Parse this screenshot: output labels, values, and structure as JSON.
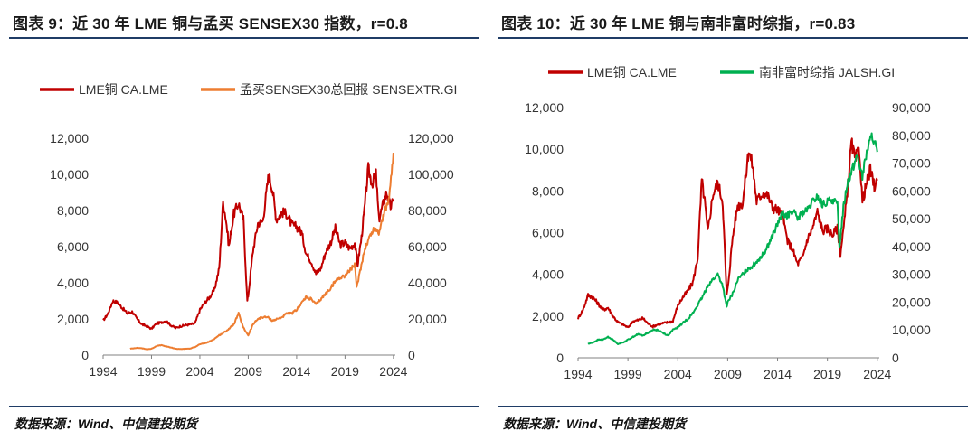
{
  "panels": [
    {
      "title": "图表 9：近 30 年 LME 铜与孟买 SENSEX30 指数，r=0.8",
      "source": "数据来源：Wind、中信建投期货"
    },
    {
      "title": "图表 10：近 30 年 LME 铜与南非富时综指，r=0.83",
      "source": "数据来源：Wind、中信建投期货"
    }
  ],
  "chart_data": [
    {
      "type": "line",
      "title": "图表 9：近 30 年 LME 铜与孟买 SENSEX30 指数，r=0.8",
      "x_ticks": [
        "1994",
        "1999",
        "2004",
        "2009",
        "2014",
        "2019",
        "2024"
      ],
      "xlim": [
        1994,
        2024.2
      ],
      "y_left": {
        "lim": [
          0,
          12000
        ],
        "ticks": [
          "0",
          "2,000",
          "4,000",
          "6,000",
          "8,000",
          "10,000",
          "12,000"
        ]
      },
      "y_right": {
        "lim": [
          0,
          120000
        ],
        "ticks": [
          "0",
          "20,000",
          "40,000",
          "60,000",
          "80,000",
          "100,000",
          "120,000"
        ]
      },
      "legend_position": "top",
      "series": [
        {
          "name": "LME铜 CA.LME",
          "color": "#c00000",
          "axis": "left",
          "x": [
            1994.0,
            1994.5,
            1995.0,
            1995.5,
            1996.0,
            1996.5,
            1997.0,
            1997.5,
            1998.0,
            1998.5,
            1999.0,
            1999.5,
            2000.0,
            2000.5,
            2001.0,
            2001.5,
            2002.0,
            2002.5,
            2003.0,
            2003.5,
            2004.0,
            2004.5,
            2005.0,
            2005.5,
            2006.0,
            2006.4,
            2006.7,
            2007.0,
            2007.5,
            2008.0,
            2008.5,
            2008.9,
            2009.0,
            2009.5,
            2010.0,
            2010.5,
            2011.0,
            2011.1,
            2011.5,
            2011.9,
            2012.5,
            2013.0,
            2013.5,
            2014.0,
            2014.5,
            2015.0,
            2015.5,
            2016.0,
            2016.5,
            2017.0,
            2017.5,
            2018.0,
            2018.5,
            2019.0,
            2019.5,
            2020.0,
            2020.3,
            2020.7,
            2021.0,
            2021.4,
            2021.8,
            2022.2,
            2022.5,
            2022.9,
            2023.3,
            2023.7,
            2024.0
          ],
          "y": [
            1900,
            2300,
            3000,
            2900,
            2600,
            2300,
            2400,
            2000,
            1700,
            1600,
            1450,
            1750,
            1800,
            1900,
            1650,
            1500,
            1600,
            1650,
            1700,
            1750,
            2500,
            2900,
            3200,
            3600,
            4800,
            8500,
            7500,
            6000,
            7800,
            8400,
            7500,
            3000,
            3300,
            5800,
            7300,
            7400,
            9500,
            10000,
            9200,
            7500,
            7900,
            7800,
            7200,
            7100,
            6800,
            5600,
            5200,
            4500,
            4800,
            5700,
            6200,
            7000,
            6100,
            6200,
            5900,
            6200,
            5000,
            6500,
            8000,
            10300,
            9500,
            10000,
            7500,
            8300,
            9000,
            8200,
            8500
          ]
        },
        {
          "name": "孟买SENSEX30总回报 SENSEXTR.GI",
          "color": "#ed7d31",
          "axis": "right",
          "x": [
            1996.8,
            1997.5,
            1998.0,
            1998.5,
            1999.0,
            1999.5,
            2000.0,
            2000.5,
            2001.0,
            2001.5,
            2002.0,
            2002.5,
            2003.0,
            2003.5,
            2004.0,
            2004.5,
            2005.0,
            2005.5,
            2006.0,
            2006.5,
            2007.0,
            2007.5,
            2008.0,
            2008.5,
            2009.0,
            2009.5,
            2010.0,
            2010.5,
            2011.0,
            2011.5,
            2012.0,
            2012.5,
            2013.0,
            2013.5,
            2014.0,
            2014.5,
            2015.0,
            2015.5,
            2016.0,
            2016.5,
            2017.0,
            2017.5,
            2018.0,
            2018.5,
            2019.0,
            2019.5,
            2020.0,
            2020.2,
            2020.5,
            2021.0,
            2021.5,
            2022.0,
            2022.5,
            2023.0,
            2023.5,
            2024.0
          ],
          "y": [
            3500,
            4000,
            3800,
            3200,
            3500,
            5000,
            5500,
            4800,
            4200,
            3500,
            3300,
            3500,
            3600,
            4500,
            6000,
            6500,
            7500,
            9000,
            11000,
            12500,
            14500,
            17000,
            23000,
            15000,
            11000,
            17000,
            20000,
            21000,
            21000,
            19000,
            20000,
            21000,
            23000,
            23000,
            25000,
            29000,
            32000,
            31000,
            28000,
            31000,
            34000,
            37000,
            41000,
            43000,
            44000,
            47000,
            50000,
            37000,
            45000,
            58000,
            65000,
            70000,
            68000,
            78000,
            85000,
            112000
          ]
        }
      ]
    },
    {
      "type": "line",
      "title": "图表 10：近 30 年 LME 铜与南非富时综指，r=0.83",
      "x_ticks": [
        "1994",
        "1999",
        "2004",
        "2009",
        "2014",
        "2019",
        "2024"
      ],
      "xlim": [
        1994,
        2024.2
      ],
      "y_left": {
        "lim": [
          0,
          12000
        ],
        "ticks": [
          "0",
          "2,000",
          "4,000",
          "6,000",
          "8,000",
          "10,000",
          "12,000"
        ]
      },
      "y_right": {
        "lim": [
          0,
          90000
        ],
        "ticks": [
          "0",
          "10,000",
          "20,000",
          "30,000",
          "40,000",
          "50,000",
          "60,000",
          "70,000",
          "80,000",
          "90,000"
        ]
      },
      "legend_position": "top",
      "series": [
        {
          "name": "LME铜 CA.LME",
          "color": "#c00000",
          "axis": "left",
          "x": [
            1994.0,
            1994.5,
            1995.0,
            1995.5,
            1996.0,
            1996.5,
            1997.0,
            1997.5,
            1998.0,
            1998.5,
            1999.0,
            1999.5,
            2000.0,
            2000.5,
            2001.0,
            2001.5,
            2002.0,
            2002.5,
            2003.0,
            2003.5,
            2004.0,
            2004.5,
            2005.0,
            2005.5,
            2006.0,
            2006.4,
            2006.7,
            2007.0,
            2007.5,
            2008.0,
            2008.5,
            2008.9,
            2009.0,
            2009.5,
            2010.0,
            2010.5,
            2011.0,
            2011.1,
            2011.5,
            2011.9,
            2012.5,
            2013.0,
            2013.5,
            2014.0,
            2014.5,
            2015.0,
            2015.5,
            2016.0,
            2016.5,
            2017.0,
            2017.5,
            2018.0,
            2018.5,
            2019.0,
            2019.5,
            2020.0,
            2020.3,
            2020.7,
            2021.0,
            2021.4,
            2021.8,
            2022.2,
            2022.5,
            2022.9,
            2023.3,
            2023.7,
            2024.0
          ],
          "y": [
            1900,
            2300,
            3000,
            2900,
            2600,
            2300,
            2400,
            2000,
            1700,
            1600,
            1450,
            1750,
            1800,
            1900,
            1650,
            1500,
            1600,
            1650,
            1700,
            1750,
            2500,
            2900,
            3200,
            3600,
            4800,
            8500,
            7500,
            6000,
            7800,
            8400,
            7500,
            3000,
            3300,
            5800,
            7300,
            7400,
            9500,
            10000,
            9200,
            7500,
            7900,
            7800,
            7200,
            7100,
            6800,
            5600,
            5200,
            4500,
            4800,
            5700,
            6200,
            7000,
            6100,
            6200,
            5900,
            6200,
            5000,
            6500,
            8000,
            10300,
            9500,
            10000,
            7500,
            8300,
            9000,
            8200,
            8500
          ]
        },
        {
          "name": "南非富时综指 JALSH.GI",
          "color": "#00b050",
          "axis": "right",
          "x": [
            1995.0,
            1995.5,
            1996.0,
            1996.5,
            1997.0,
            1997.5,
            1998.0,
            1998.5,
            1999.0,
            1999.5,
            2000.0,
            2000.5,
            2001.0,
            2001.5,
            2002.0,
            2002.5,
            2003.0,
            2003.5,
            2004.0,
            2004.5,
            2005.0,
            2005.5,
            2006.0,
            2006.5,
            2007.0,
            2007.5,
            2008.0,
            2008.5,
            2008.9,
            2009.0,
            2009.5,
            2010.0,
            2010.5,
            2011.0,
            2011.5,
            2012.0,
            2012.5,
            2013.0,
            2013.5,
            2014.0,
            2014.5,
            2015.0,
            2015.5,
            2016.0,
            2016.5,
            2017.0,
            2017.5,
            2018.0,
            2018.5,
            2019.0,
            2019.5,
            2020.0,
            2020.2,
            2020.6,
            2021.0,
            2021.5,
            2022.0,
            2022.5,
            2023.0,
            2023.5,
            2024.0
          ],
          "y": [
            5000,
            5500,
            6500,
            6500,
            7500,
            6500,
            5000,
            5500,
            6500,
            7500,
            8500,
            8000,
            9000,
            10000,
            10000,
            9000,
            8000,
            10000,
            11000,
            12500,
            14000,
            16000,
            19000,
            22000,
            26000,
            28000,
            30000,
            26000,
            18000,
            20000,
            23000,
            28000,
            30000,
            32000,
            33000,
            35000,
            37000,
            40000,
            44000,
            48000,
            52000,
            51000,
            53000,
            50000,
            52000,
            53000,
            56000,
            58000,
            55000,
            56000,
            57000,
            55000,
            40000,
            54000,
            63000,
            68000,
            73000,
            65000,
            75000,
            80000,
            74000
          ]
        }
      ]
    }
  ]
}
